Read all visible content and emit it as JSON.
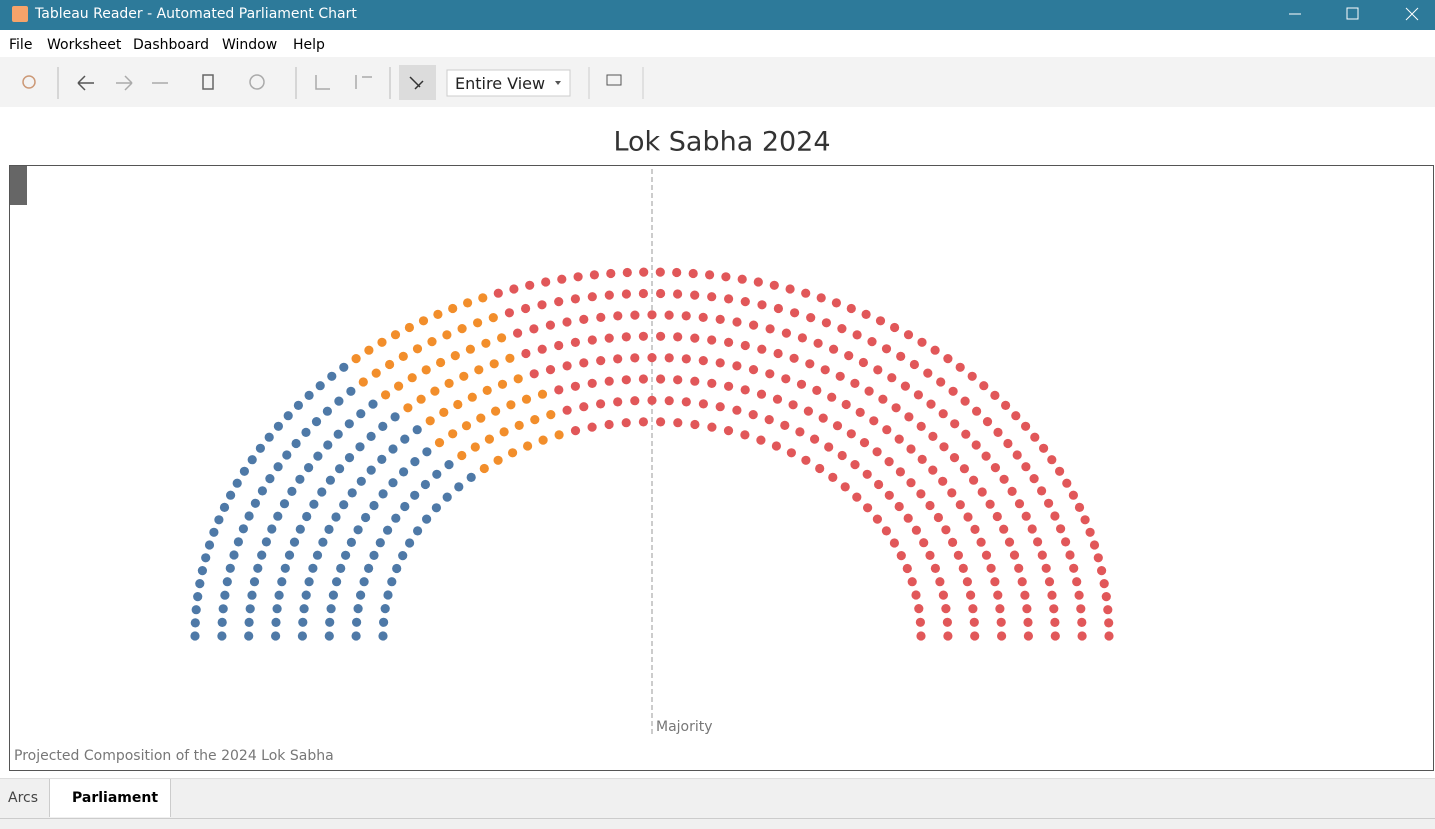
{
  "window": {
    "title": "Tableau Reader - Automated Parliament Chart"
  },
  "menu": [
    "File",
    "Worksheet",
    "Dashboard",
    "Window",
    "Help"
  ],
  "toolbar": {
    "view": "Entire View"
  },
  "chart_data": {
    "type": "parliament",
    "title": "Lok Sabha 2024",
    "caption": "Projected Composition of the 2024 Lok Sabha",
    "reference_line_label": "Majority",
    "values": [
      147,
      65,
      331
    ],
    "colors": [
      "#4e79a7",
      "#f28e2b",
      "#e15759"
    ]
  },
  "tabs": [
    "Arcs",
    "Parliament"
  ]
}
